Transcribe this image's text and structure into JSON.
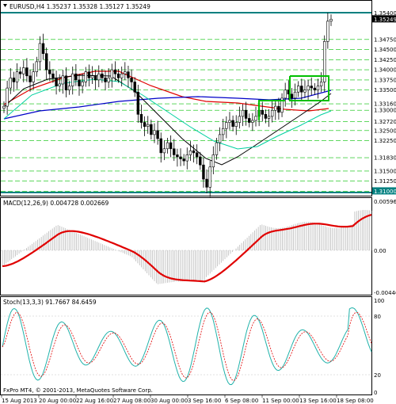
{
  "symbol_header": "EURUSD,H4  1.35237 1.35328 1.35127 1.35249",
  "price_panel": {
    "y_labels": [
      "1.35400",
      "1.35249",
      "1.34750",
      "1.34500",
      "1.34250",
      "1.34000",
      "1.33750",
      "1.33500",
      "1.33160",
      "1.33000",
      "1.32720",
      "1.32500",
      "1.32250",
      "1.31830",
      "1.31500",
      "1.31250",
      "1.31000"
    ],
    "current_price": "1.35249",
    "bottom_tag": "1.31000",
    "colors": {
      "candle": "#000000",
      "ma_red": "#e00000",
      "ma_blue": "#0000c8",
      "ma_black": "#000000",
      "ma_cyan": "#00d0a0",
      "level_line": "#00c000",
      "top_line": "#008080"
    }
  },
  "macd_panel": {
    "header": "MACD(12,26,9) 0.004728 0.002669",
    "y_labels": [
      "0.005964",
      "0.00",
      "-0.004464"
    ]
  },
  "stoch_panel": {
    "header": "Stoch(13,3,3) 91.7667 84.6459",
    "y_labels": [
      "100",
      "80",
      "20",
      "0"
    ]
  },
  "copyright": "FxPro MT4, © 2001-2013, MetaQuotes Software Corp.",
  "x_labels": [
    "15 Aug 2013",
    "20 Aug 00:00",
    "22 Aug 16:00",
    "27 Aug 08:00",
    "30 Aug 00:00",
    "3 Sep 16:00",
    "6 Sep 08:00",
    "11 Sep 00:00",
    "13 Sep 16:00",
    "18 Sep 08:00"
  ],
  "chart_data": {
    "type": "candlestick",
    "symbol": "EURUSD",
    "timeframe": "H4",
    "ohlc_last": {
      "open": 1.35237,
      "high": 1.35328,
      "low": 1.35127,
      "close": 1.35249
    },
    "closes": [
      1.331,
      1.3355,
      1.338,
      1.337,
      1.3395,
      1.339,
      1.3405,
      1.3385,
      1.337,
      1.3395,
      1.342,
      1.3465,
      1.344,
      1.34,
      1.339,
      1.338,
      1.336,
      1.3365,
      1.3385,
      1.335,
      1.336,
      1.339,
      1.3375,
      1.336,
      1.337,
      1.3395,
      1.338,
      1.3385,
      1.3375,
      1.339,
      1.338,
      1.337,
      1.338,
      1.34,
      1.339,
      1.338,
      1.339,
      1.3395,
      1.338,
      1.337,
      1.3345,
      1.329,
      1.327,
      1.326,
      1.3265,
      1.324,
      1.325,
      1.323,
      1.3195,
      1.3205,
      1.322,
      1.3205,
      1.319,
      1.3185,
      1.318,
      1.3175,
      1.319,
      1.32,
      1.3195,
      1.3185,
      1.3165,
      1.313,
      1.311,
      1.316,
      1.319,
      1.322,
      1.324,
      1.3255,
      1.327,
      1.3275,
      1.326,
      1.327,
      1.3285,
      1.33,
      1.328,
      1.327,
      1.3275,
      1.3285,
      1.33,
      1.329,
      1.328,
      1.3285,
      1.33,
      1.331,
      1.3295,
      1.333,
      1.335,
      1.334,
      1.333,
      1.3345,
      1.336,
      1.3345,
      1.335,
      1.336,
      1.3355,
      1.335,
      1.336,
      1.337,
      1.347,
      1.352,
      1.3525
    ],
    "horizontal_levels": [
      1.354,
      1.3475,
      1.345,
      1.3425,
      1.34,
      1.3375,
      1.335,
      1.3316,
      1.33,
      1.3272,
      1.325,
      1.3225,
      1.3183,
      1.315,
      1.3125,
      1.31
    ],
    "ylim": [
      1.3095,
      1.3545
    ],
    "macd": {
      "value": 0.004728,
      "signal": 0.002669,
      "ylim": [
        -0.004464,
        0.005964
      ]
    },
    "stochastic": {
      "k": 91.7667,
      "d": 84.6459,
      "ylim": [
        0,
        100
      ]
    }
  }
}
